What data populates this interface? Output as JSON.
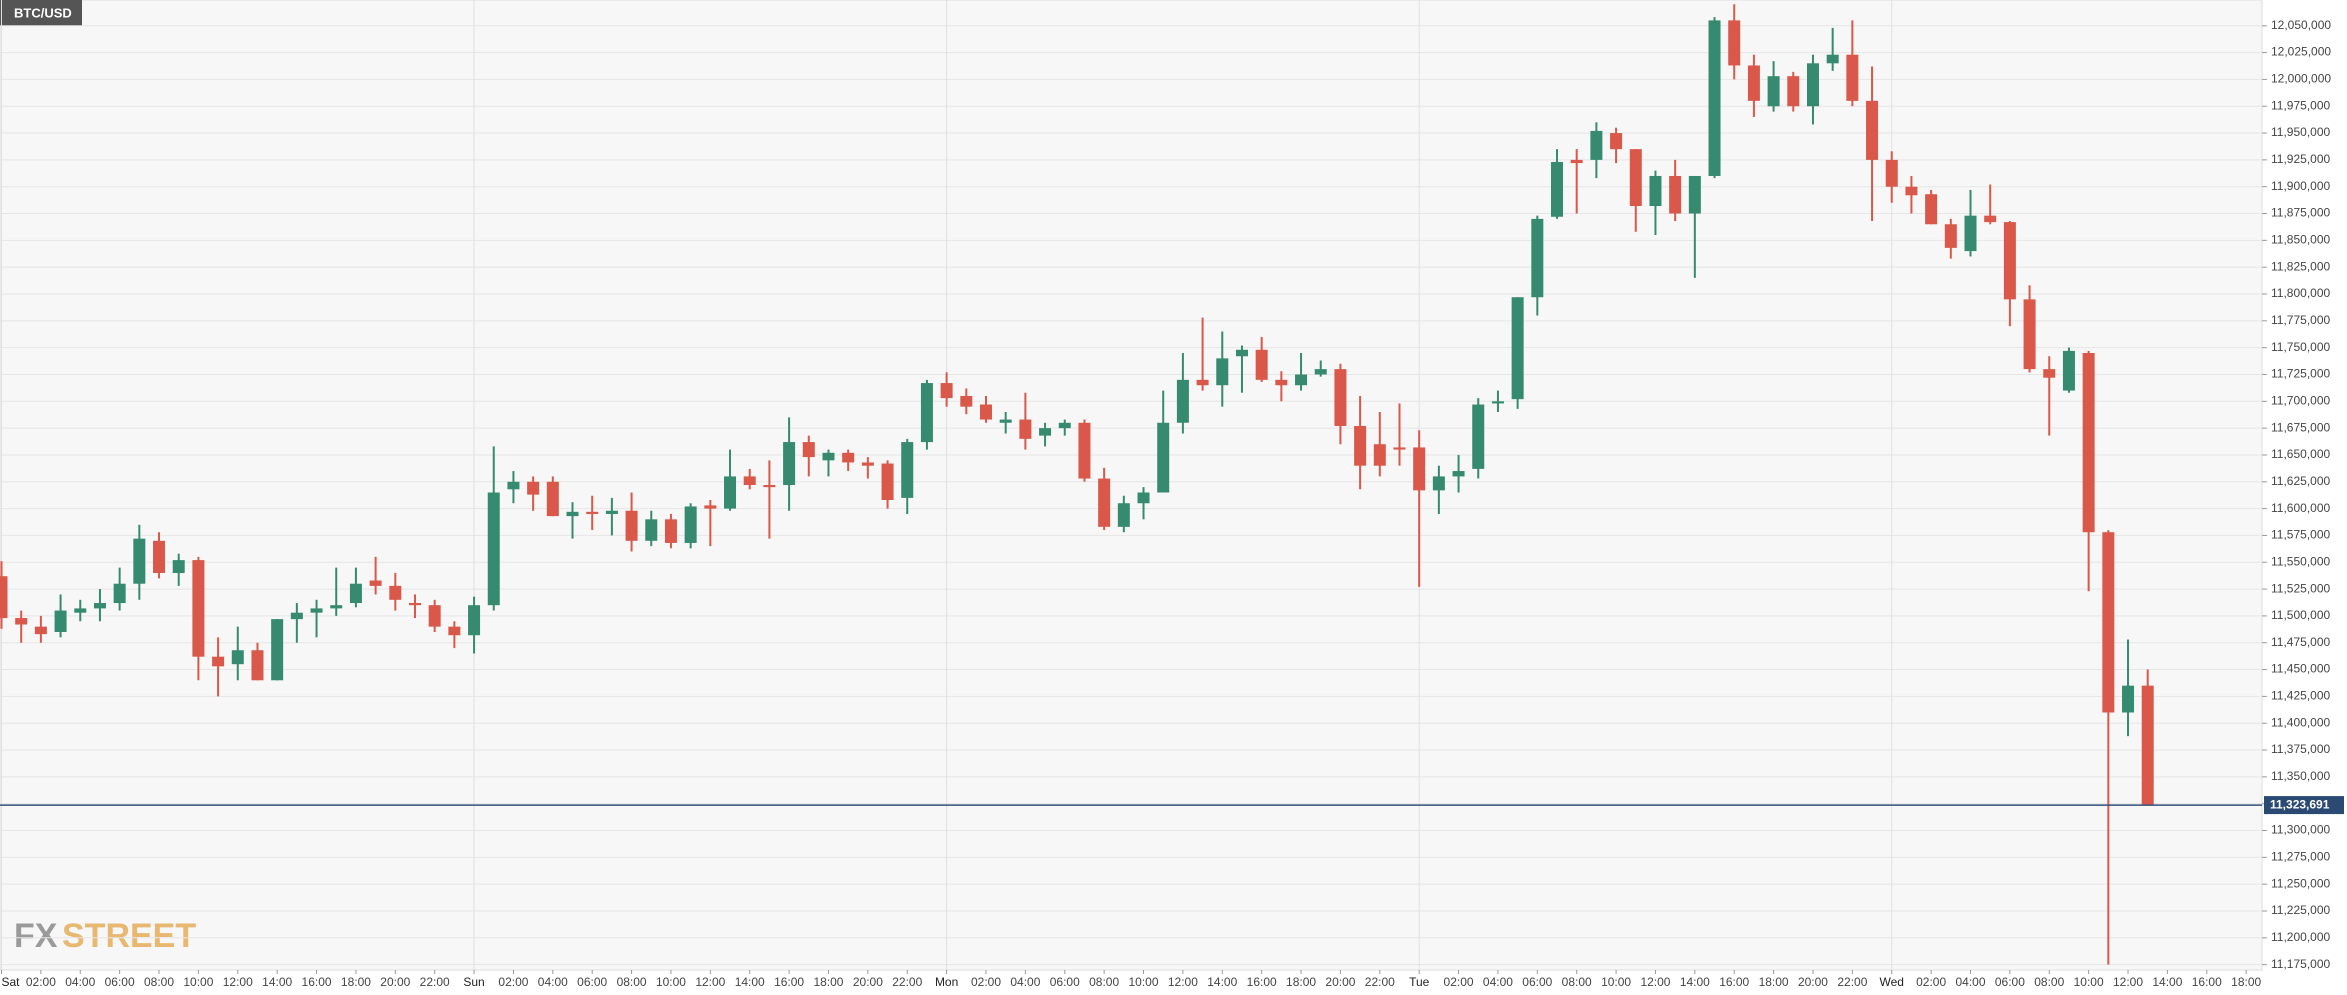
{
  "chart_data": {
    "type": "candlestick",
    "title": "BTC/USD",
    "watermark": [
      "FX",
      "STREET"
    ],
    "up_color": "#358a6f",
    "down_color": "#d9584a",
    "grid": true,
    "ylim": [
      11170000,
      12074000
    ],
    "yticks": [
      {
        "value": 11175000,
        "label": "11,175,000"
      },
      {
        "value": 11200000,
        "label": "11,200,000"
      },
      {
        "value": 11225000,
        "label": "11,225,000"
      },
      {
        "value": 11250000,
        "label": "11,250,000"
      },
      {
        "value": 11275000,
        "label": "11,275,000"
      },
      {
        "value": 11300000,
        "label": "11,300,000"
      },
      {
        "value": 11325000,
        "label": "11,325,000"
      },
      {
        "value": 11350000,
        "label": "11,350,000"
      },
      {
        "value": 11375000,
        "label": "11,375,000"
      },
      {
        "value": 11400000,
        "label": "11,400,000"
      },
      {
        "value": 11425000,
        "label": "11,425,000"
      },
      {
        "value": 11450000,
        "label": "11,450,000"
      },
      {
        "value": 11475000,
        "label": "11,475,000"
      },
      {
        "value": 11500000,
        "label": "11,500,000"
      },
      {
        "value": 11525000,
        "label": "11,525,000"
      },
      {
        "value": 11550000,
        "label": "11,550,000"
      },
      {
        "value": 11575000,
        "label": "11,575,000"
      },
      {
        "value": 11600000,
        "label": "11,600,000"
      },
      {
        "value": 11625000,
        "label": "11,625,000"
      },
      {
        "value": 11650000,
        "label": "11,650,000"
      },
      {
        "value": 11675000,
        "label": "11,675,000"
      },
      {
        "value": 11700000,
        "label": "11,700,000"
      },
      {
        "value": 11725000,
        "label": "11,725,000"
      },
      {
        "value": 11750000,
        "label": "11,750,000"
      },
      {
        "value": 11775000,
        "label": "11,775,000"
      },
      {
        "value": 11800000,
        "label": "11,800,000"
      },
      {
        "value": 11825000,
        "label": "11,825,000"
      },
      {
        "value": 11850000,
        "label": "11,850,000"
      },
      {
        "value": 11875000,
        "label": "11,875,000"
      },
      {
        "value": 11900000,
        "label": "11,900,000"
      },
      {
        "value": 11925000,
        "label": "11,925,000"
      },
      {
        "value": 11950000,
        "label": "11,950,000"
      },
      {
        "value": 11975000,
        "label": "11,975,000"
      },
      {
        "value": 12000000,
        "label": "12,000,000"
      },
      {
        "value": 12025000,
        "label": "12,025,000"
      },
      {
        "value": 12050000,
        "label": "12,050,000"
      }
    ],
    "current_price": {
      "value": 11323691,
      "label": "11,323,691"
    },
    "x_labels": [
      "Sat",
      "02:00",
      "04:00",
      "06:00",
      "08:00",
      "10:00",
      "12:00",
      "14:00",
      "16:00",
      "18:00",
      "20:00",
      "22:00",
      "Sun",
      "02:00",
      "04:00",
      "06:00",
      "08:00",
      "10:00",
      "12:00",
      "14:00",
      "16:00",
      "18:00",
      "20:00",
      "22:00",
      "Mon",
      "02:00",
      "04:00",
      "06:00",
      "08:00",
      "10:00",
      "12:00",
      "14:00",
      "16:00",
      "18:00",
      "20:00",
      "22:00",
      "Tue",
      "02:00",
      "04:00",
      "06:00",
      "08:00",
      "10:00",
      "12:00",
      "14:00",
      "16:00",
      "18:00",
      "20:00",
      "22:00",
      "Wed",
      "02:00",
      "04:00",
      "06:00",
      "08:00",
      "10:00",
      "12:00",
      "14:00",
      "16:00",
      "18:00"
    ],
    "candles": [
      [
        11537000,
        11551000,
        11488000,
        11498000
      ],
      [
        11498000,
        11505000,
        11475000,
        11492000
      ],
      [
        11490000,
        11500000,
        11475000,
        11483000
      ],
      [
        11485000,
        11520000,
        11480000,
        11505000
      ],
      [
        11503000,
        11515000,
        11495000,
        11507000
      ],
      [
        11507000,
        11525000,
        11495000,
        11512000
      ],
      [
        11512000,
        11545000,
        11505000,
        11530000
      ],
      [
        11530000,
        11585000,
        11515000,
        11572000
      ],
      [
        11570000,
        11578000,
        11535000,
        11540000
      ],
      [
        11540000,
        11558000,
        11528000,
        11552000
      ],
      [
        11552000,
        11555000,
        11440000,
        11462000
      ],
      [
        11462000,
        11480000,
        11425000,
        11453000
      ],
      [
        11455000,
        11490000,
        11440000,
        11468000
      ],
      [
        11468000,
        11475000,
        11440000,
        11440000
      ],
      [
        11440000,
        11497000,
        11440000,
        11497000
      ],
      [
        11497000,
        11512000,
        11475000,
        11503000
      ],
      [
        11503000,
        11515000,
        11480000,
        11507000
      ],
      [
        11507000,
        11545000,
        11500000,
        11510000
      ],
      [
        11512000,
        11545000,
        11508000,
        11530000
      ],
      [
        11533000,
        11555000,
        11520000,
        11528000
      ],
      [
        11528000,
        11540000,
        11505000,
        11515000
      ],
      [
        11512000,
        11520000,
        11498000,
        11510000
      ],
      [
        11510000,
        11515000,
        11485000,
        11490000
      ],
      [
        11490000,
        11495000,
        11470000,
        11482000
      ],
      [
        11482000,
        11518000,
        11465000,
        11510000
      ],
      [
        11510000,
        11658000,
        11505000,
        11615000
      ],
      [
        11618000,
        11635000,
        11605000,
        11625000
      ],
      [
        11625000,
        11630000,
        11598000,
        11613000
      ],
      [
        11625000,
        11630000,
        11593000,
        11593000
      ],
      [
        11593000,
        11606000,
        11572000,
        11597000
      ],
      [
        11597000,
        11612000,
        11580000,
        11595000
      ],
      [
        11595000,
        11610000,
        11575000,
        11598000
      ],
      [
        11598000,
        11615000,
        11560000,
        11570000
      ],
      [
        11570000,
        11598000,
        11565000,
        11590000
      ],
      [
        11590000,
        11595000,
        11563000,
        11568000
      ],
      [
        11568000,
        11605000,
        11563000,
        11602000
      ],
      [
        11603000,
        11608000,
        11565000,
        11600000
      ],
      [
        11600000,
        11655000,
        11598000,
        11630000
      ],
      [
        11630000,
        11637000,
        11618000,
        11622000
      ],
      [
        11622000,
        11645000,
        11572000,
        11620000
      ],
      [
        11622000,
        11685000,
        11598000,
        11662000
      ],
      [
        11662000,
        11668000,
        11630000,
        11648000
      ],
      [
        11645000,
        11655000,
        11630000,
        11652000
      ],
      [
        11652000,
        11655000,
        11635000,
        11643000
      ],
      [
        11643000,
        11648000,
        11628000,
        11640000
      ],
      [
        11642000,
        11645000,
        11600000,
        11608000
      ],
      [
        11610000,
        11665000,
        11595000,
        11662000
      ],
      [
        11662000,
        11720000,
        11655000,
        11717000
      ],
      [
        11717000,
        11727000,
        11695000,
        11703000
      ],
      [
        11705000,
        11712000,
        11688000,
        11695000
      ],
      [
        11697000,
        11705000,
        11680000,
        11683000
      ],
      [
        11680000,
        11690000,
        11670000,
        11683000
      ],
      [
        11683000,
        11708000,
        11655000,
        11665000
      ],
      [
        11668000,
        11680000,
        11658000,
        11675000
      ],
      [
        11675000,
        11683000,
        11668000,
        11680000
      ],
      [
        11680000,
        11683000,
        11625000,
        11628000
      ],
      [
        11628000,
        11638000,
        11580000,
        11583000
      ],
      [
        11583000,
        11612000,
        11578000,
        11605000
      ],
      [
        11605000,
        11620000,
        11590000,
        11615000
      ],
      [
        11615000,
        11710000,
        11615000,
        11680000
      ],
      [
        11680000,
        11745000,
        11670000,
        11720000
      ],
      [
        11720000,
        11778000,
        11710000,
        11715000
      ],
      [
        11715000,
        11765000,
        11695000,
        11740000
      ],
      [
        11742000,
        11752000,
        11708000,
        11748000
      ],
      [
        11748000,
        11760000,
        11718000,
        11720000
      ],
      [
        11720000,
        11728000,
        11700000,
        11715000
      ],
      [
        11715000,
        11745000,
        11710000,
        11725000
      ],
      [
        11725000,
        11738000,
        11723000,
        11730000
      ],
      [
        11730000,
        11735000,
        11660000,
        11677000
      ],
      [
        11677000,
        11705000,
        11618000,
        11640000
      ],
      [
        11660000,
        11690000,
        11630000,
        11640000
      ],
      [
        11657000,
        11698000,
        11640000,
        11655000
      ],
      [
        11657000,
        11673000,
        11527000,
        11617000
      ],
      [
        11617000,
        11640000,
        11595000,
        11630000
      ],
      [
        11630000,
        11650000,
        11615000,
        11635000
      ],
      [
        11637000,
        11703000,
        11628000,
        11697000
      ],
      [
        11698000,
        11710000,
        11690000,
        11700000
      ],
      [
        11702000,
        11797000,
        11693000,
        11797000
      ],
      [
        11797000,
        11873000,
        11780000,
        11870000
      ],
      [
        11872000,
        11935000,
        11870000,
        11923000
      ],
      [
        11925000,
        11935000,
        11875000,
        11922000
      ],
      [
        11925000,
        11960000,
        11908000,
        11952000
      ],
      [
        11950000,
        11955000,
        11922000,
        11935000
      ],
      [
        11935000,
        11935000,
        11858000,
        11882000
      ],
      [
        11882000,
        11915000,
        11855000,
        11910000
      ],
      [
        11910000,
        11925000,
        11868000,
        11875000
      ],
      [
        11875000,
        11910000,
        11815000,
        11910000
      ],
      [
        11910000,
        12058000,
        11908000,
        12055000
      ],
      [
        12055000,
        12070000,
        12000000,
        12013000
      ],
      [
        12013000,
        12023000,
        11965000,
        11980000
      ],
      [
        11975000,
        12017000,
        11970000,
        12003000
      ],
      [
        12003000,
        12007000,
        11970000,
        11975000
      ],
      [
        11975000,
        12023000,
        11958000,
        12015000
      ],
      [
        12015000,
        12048000,
        12008000,
        12023000
      ],
      [
        12023000,
        12055000,
        11975000,
        11980000
      ],
      [
        11980000,
        12012000,
        11868000,
        11925000
      ],
      [
        11925000,
        11933000,
        11885000,
        11900000
      ],
      [
        11900000,
        11910000,
        11875000,
        11892000
      ],
      [
        11893000,
        11897000,
        11865000,
        11865000
      ],
      [
        11865000,
        11870000,
        11833000,
        11843000
      ],
      [
        11840000,
        11897000,
        11835000,
        11873000
      ],
      [
        11873000,
        11902000,
        11865000,
        11867000
      ],
      [
        11867000,
        11868000,
        11770000,
        11795000
      ],
      [
        11795000,
        11808000,
        11727000,
        11730000
      ],
      [
        11730000,
        11742000,
        11668000,
        11722000
      ],
      [
        11710000,
        11750000,
        11708000,
        11747000
      ],
      [
        11745000,
        11747000,
        11523000,
        11578000
      ],
      [
        11578000,
        11580000,
        11175000,
        11410000
      ],
      [
        11410000,
        11478000,
        11388000,
        11435000
      ],
      [
        11435000,
        11450000,
        11323691,
        11323691
      ]
    ]
  }
}
